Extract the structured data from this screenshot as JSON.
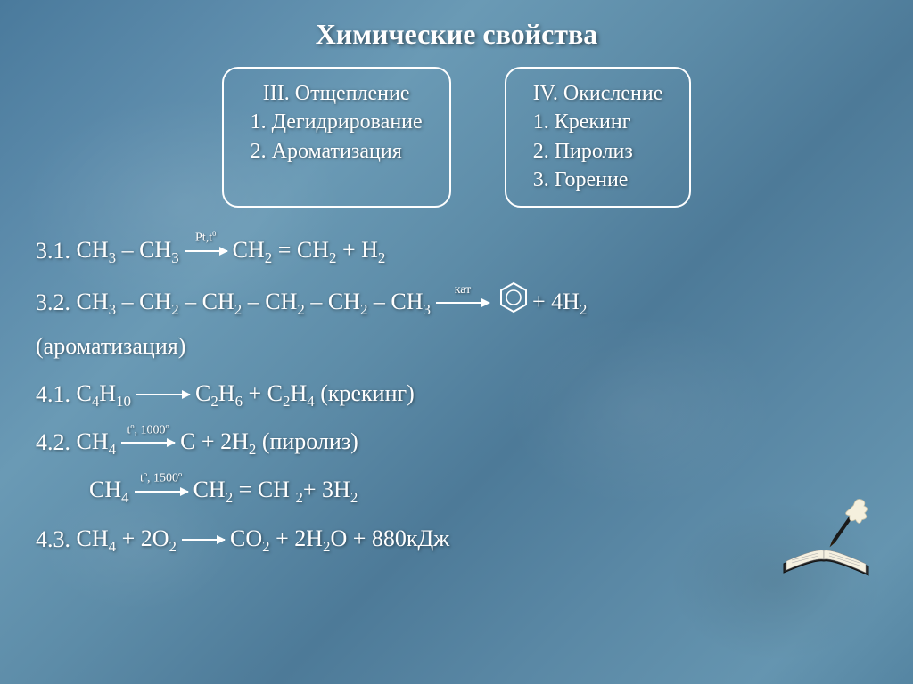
{
  "title": "Химические свойства",
  "box_left": {
    "heading": "III. Отщепление",
    "items": [
      "1. Дегидрирование",
      "2. Ароматизация"
    ]
  },
  "box_right": {
    "heading": "IV. Окисление",
    "items": [
      "1. Крекинг",
      "2. Пиролиз",
      "3. Горение"
    ]
  },
  "equations": {
    "e31_num": "3.1.",
    "e31_lhs": "CH₃ – CH₃",
    "e31_cond": "Pt,t⁰",
    "e31_rhs": "CH₂ = CH₂ + H₂",
    "e32_num": "3.2.",
    "e32_lhs": "CH₃ – CH₂ – CH₂ – CH₂ – CH₂ – CH₃",
    "e32_cond": "кат",
    "e32_rhs": "+ 4H₂",
    "e32_note": "(ароматизация)",
    "e41_num": "4.1.",
    "e41_lhs": "C₄H₁₀",
    "e41_rhs": "C₂H₆ + C₂H₄ (крекинг)",
    "e42_num": "4.2.",
    "e42_lhs": "CH₄",
    "e42_cond": "tº, 1000º",
    "e42_rhs": "C + 2H₂ (пиролиз)",
    "e42b_lhs": "CH₄",
    "e42b_cond": "tº, 1500º",
    "e42b_rhs": "CH₂ = CH ₂+ 3H₂",
    "e43_num": "4.3.",
    "e43_lhs": "CH₄ + 2O₂",
    "e43_rhs": "CO₂ + 2H₂O + 880кДж"
  },
  "colors": {
    "text": "#ffffff",
    "border": "#ffffff",
    "bg_base": "#5b8aaa"
  }
}
